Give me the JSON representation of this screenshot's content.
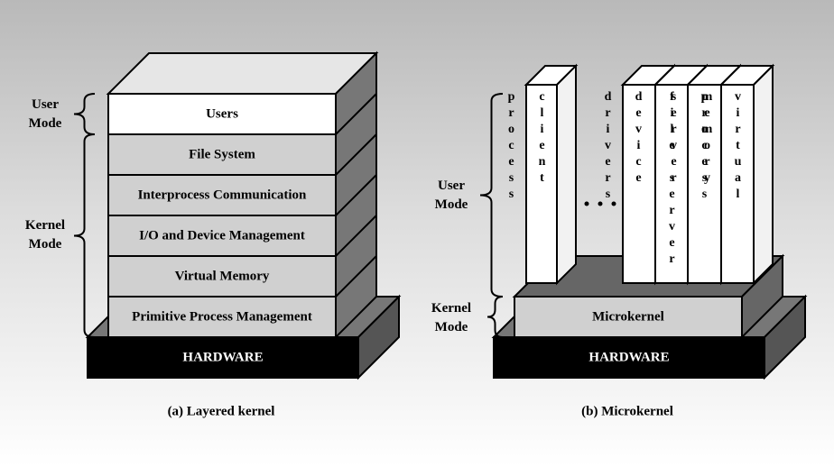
{
  "layered": {
    "layers": [
      "Users",
      "File System",
      "Interprocess Communication",
      "I/O and Device Management",
      "Virtual Memory",
      "Primitive Process Management"
    ],
    "hardware": "HARDWARE",
    "user_mode": "User Mode",
    "kernel_mode": "Kernel Mode",
    "caption": "(a) Layered kernel"
  },
  "microkernel": {
    "processes": [
      "client process",
      "device drivers",
      "file server",
      "process server",
      "virtual memory"
    ],
    "kernel": "Microkernel",
    "hardware": "HARDWARE",
    "user_mode": "User Mode",
    "kernel_mode": "Kernel Mode",
    "caption": "(b) Microkernel"
  }
}
